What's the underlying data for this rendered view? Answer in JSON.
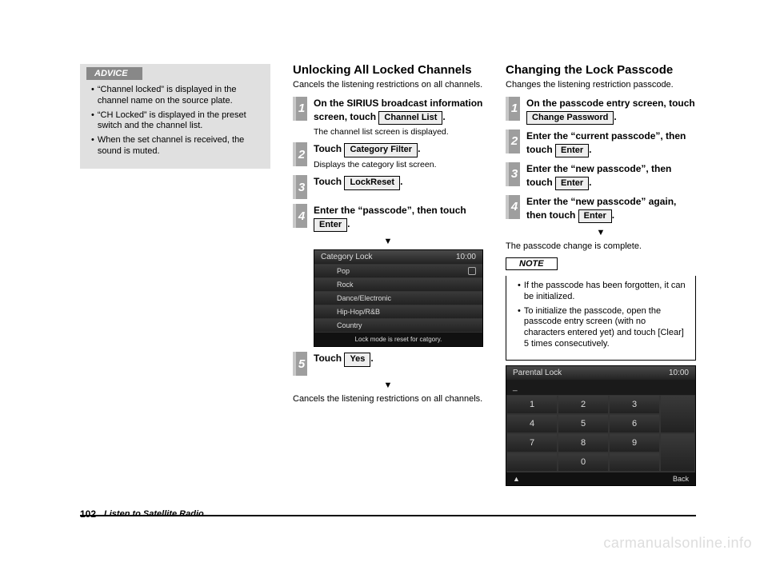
{
  "advice": {
    "header": "ADVICE",
    "bullets": [
      "“Channel locked” is displayed in the channel name on the source plate.",
      "“CH Locked” is displayed in the preset switch and the channel list.",
      "When the set channel is received, the sound is muted."
    ]
  },
  "col2": {
    "heading": "Unlocking All Locked Channels",
    "sub": "Cancels the listening restrictions on all channels.",
    "steps": {
      "s1_a": "On the SIRIUS broadcast information screen, touch",
      "s1_btn": "Channel List",
      "s1_b": ".",
      "s1_note": "The channel list screen is displayed.",
      "s2_a": "Touch",
      "s2_btn": "Category Filter",
      "s2_b": ".",
      "s2_note": "Displays the category list screen.",
      "s3_a": "Touch",
      "s3_btn": "LockReset",
      "s3_b": ".",
      "s4_a": "Enter the “passcode”, then touch",
      "s4_btn": "Enter",
      "s4_b": ".",
      "s5_a": "Touch",
      "s5_btn": "Yes",
      "s5_b": "."
    },
    "screen": {
      "title": "Category Lock",
      "time": "10:00",
      "rows": [
        "Pop",
        "Rock",
        "Dance/Electronic",
        "Hip-Hop/R&B",
        "Country"
      ],
      "footer": "Lock mode is reset for catgory."
    },
    "closing": "Cancels the listening restrictions on all channels.",
    "arrow": "▼"
  },
  "col3": {
    "heading": "Changing the Lock Passcode",
    "sub": "Changes the listening restriction passcode.",
    "steps": {
      "s1_a": "On the passcode entry screen, touch",
      "s1_btn": "Change Password",
      "s1_b": ".",
      "s2_a": "Enter the “current passcode”, then touch",
      "s2_btn": "Enter",
      "s2_b": ".",
      "s3_a": "Enter the “new passcode”, then touch",
      "s3_btn": "Enter",
      "s3_b": ".",
      "s4_a": "Enter the “new passcode” again, then touch",
      "s4_btn": "Enter",
      "s4_b": "."
    },
    "arrow": "▼",
    "closing": "The passcode change is complete.",
    "note": {
      "header": "NOTE",
      "bullets": [
        "If the passcode has been forgotten, it can be initialized.",
        "To initialize the passcode, open the passcode entry screen (with no characters entered yet) and touch [Clear] 5 times consecutively."
      ]
    },
    "pad": {
      "title": "Parental Lock",
      "time": "10:00",
      "display": "_",
      "keys": [
        [
          "1",
          "2",
          "3"
        ],
        [
          "4",
          "5",
          "6"
        ],
        [
          "7",
          "8",
          "9"
        ],
        [
          "",
          "0",
          ""
        ]
      ],
      "side_top": "",
      "side_bot": "",
      "bottom_left": "▲",
      "bottom_right": "Back"
    }
  },
  "footer": {
    "page": "102",
    "title": "Listen to Satellite Radio"
  },
  "watermark": "carmanualsonline.info"
}
